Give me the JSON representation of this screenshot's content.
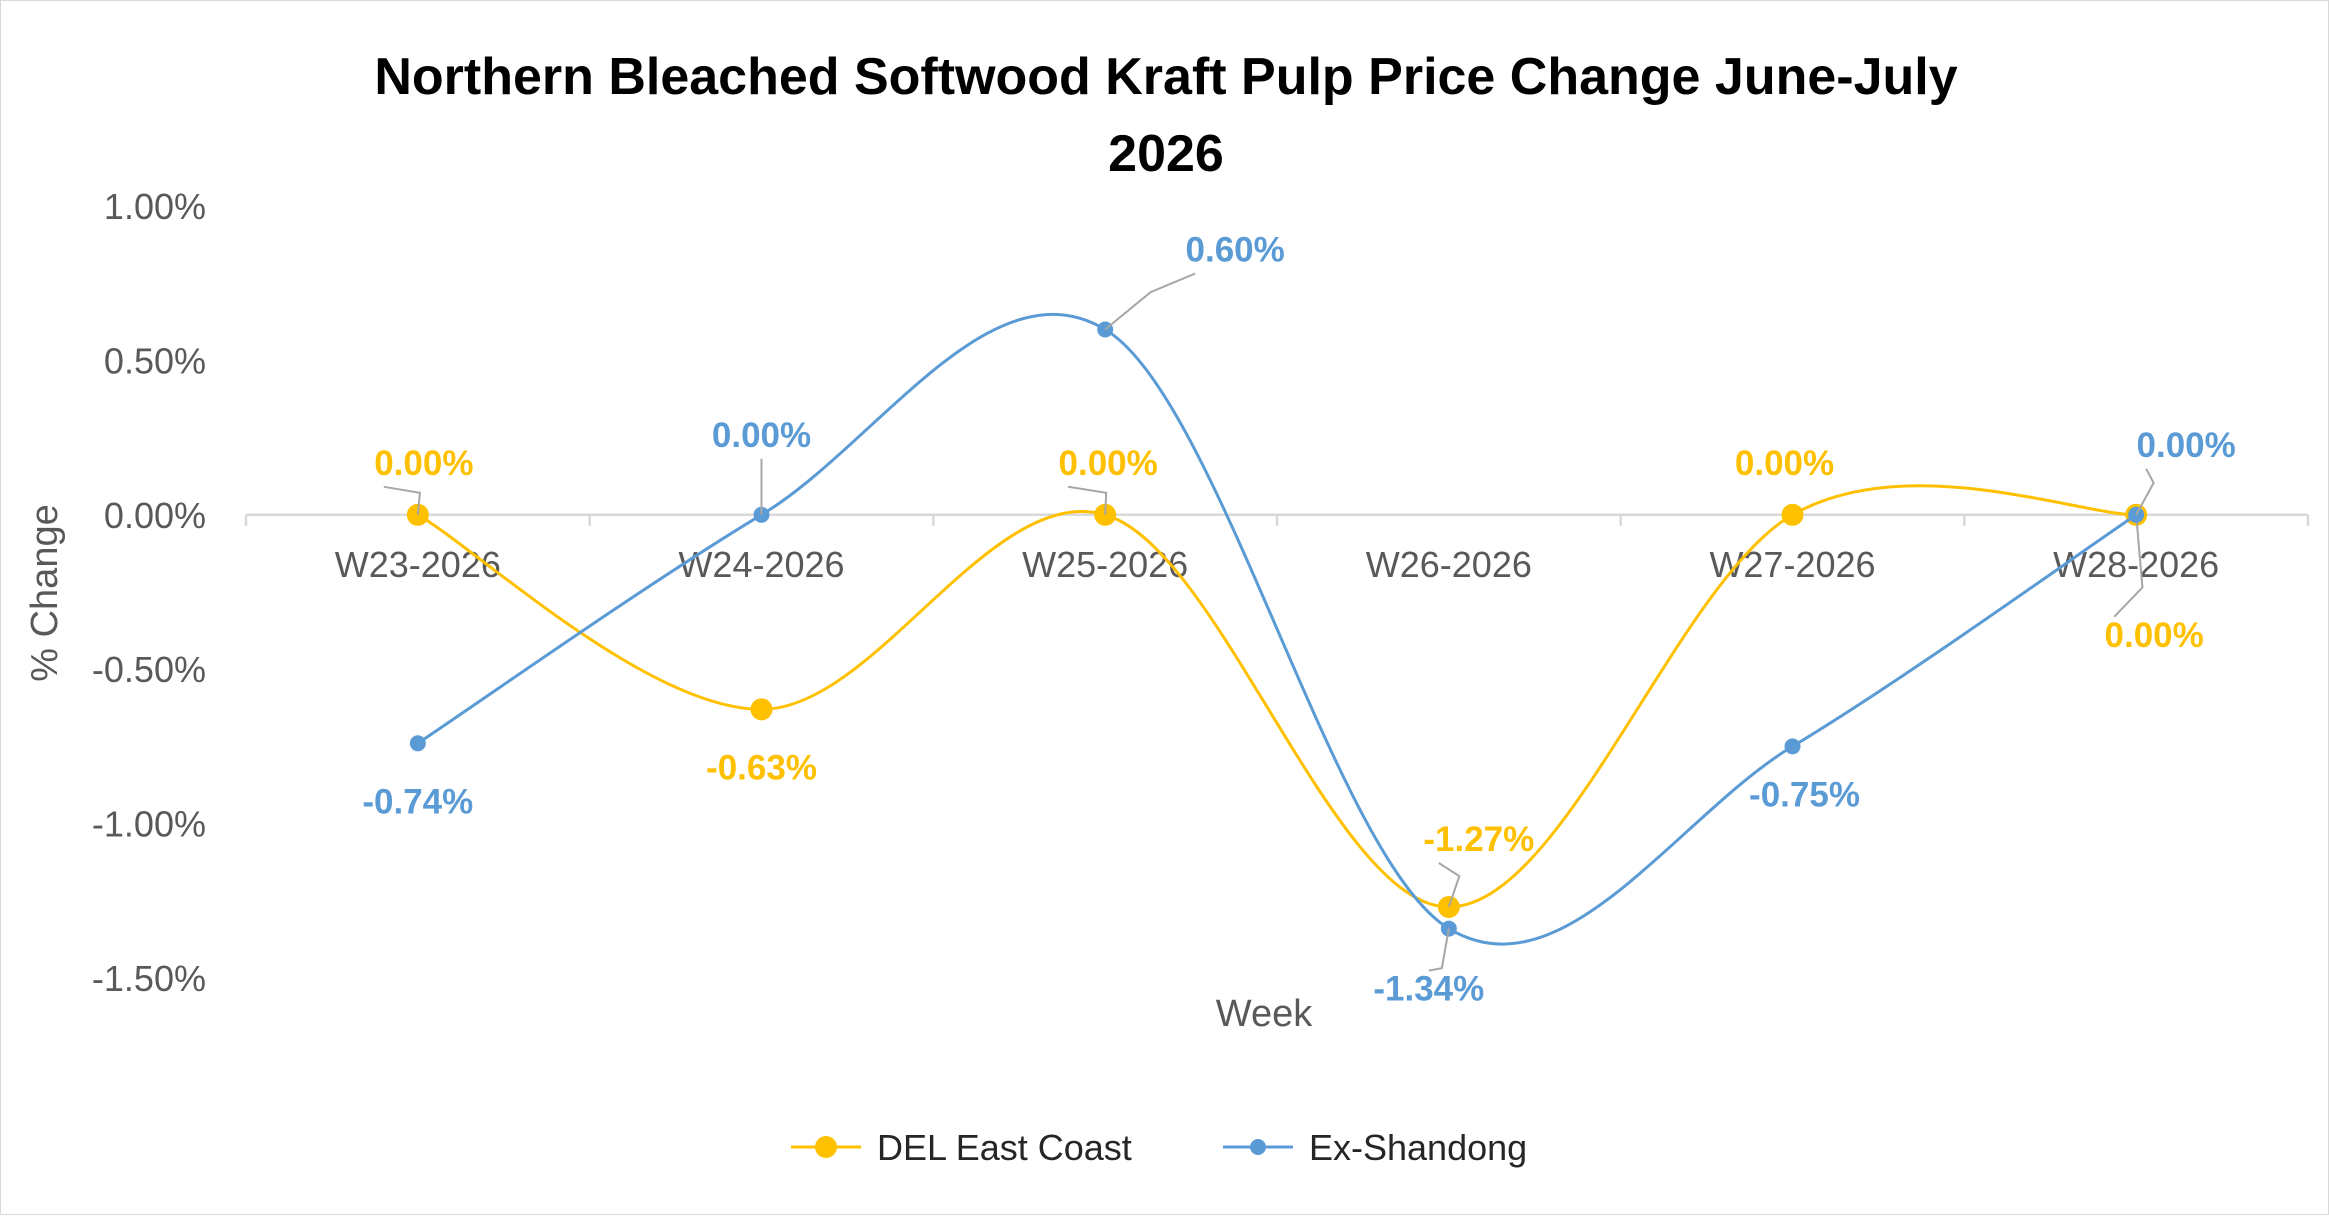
{
  "chart_data": {
    "type": "line",
    "title": "Northern Bleached Softwood Kraft Pulp Price Change June-July 2026",
    "title_lines": [
      "Northern Bleached Softwood Kraft Pulp Price Change June-July",
      "2026"
    ],
    "xlabel": "Week",
    "ylabel": "% Change",
    "categories": [
      "W23-2026",
      "W24-2026",
      "W25-2026",
      "W26-2026",
      "W27-2026",
      "W28-2026"
    ],
    "y_ticks": [
      1.0,
      0.5,
      0.0,
      -0.5,
      -1.0,
      -1.5
    ],
    "y_tick_labels": [
      "1.00%",
      "0.50%",
      "0.00%",
      "-0.50%",
      "-1.00%",
      "-1.50%"
    ],
    "ylim": [
      -1.5,
      1.0
    ],
    "grid": false,
    "smoothed": true,
    "legend_position": "bottom",
    "series": [
      {
        "name": "DEL East Coast",
        "color": "#FFC000",
        "values": [
          0.0,
          -0.63,
          0.0,
          -1.27,
          0.0,
          0.0
        ],
        "labels": [
          "0.00%",
          "-0.63%",
          "0.00%",
          "-1.27%",
          "0.00%",
          "0.00%"
        ]
      },
      {
        "name": "Ex-Shandong",
        "color": "#5B9BD5",
        "values": [
          -0.74,
          0.0,
          0.6,
          -1.34,
          -0.75,
          0.0
        ],
        "labels": [
          "-0.74%",
          "0.00%",
          "0.60%",
          "-1.34%",
          "-0.75%",
          "0.00%"
        ]
      }
    ]
  }
}
